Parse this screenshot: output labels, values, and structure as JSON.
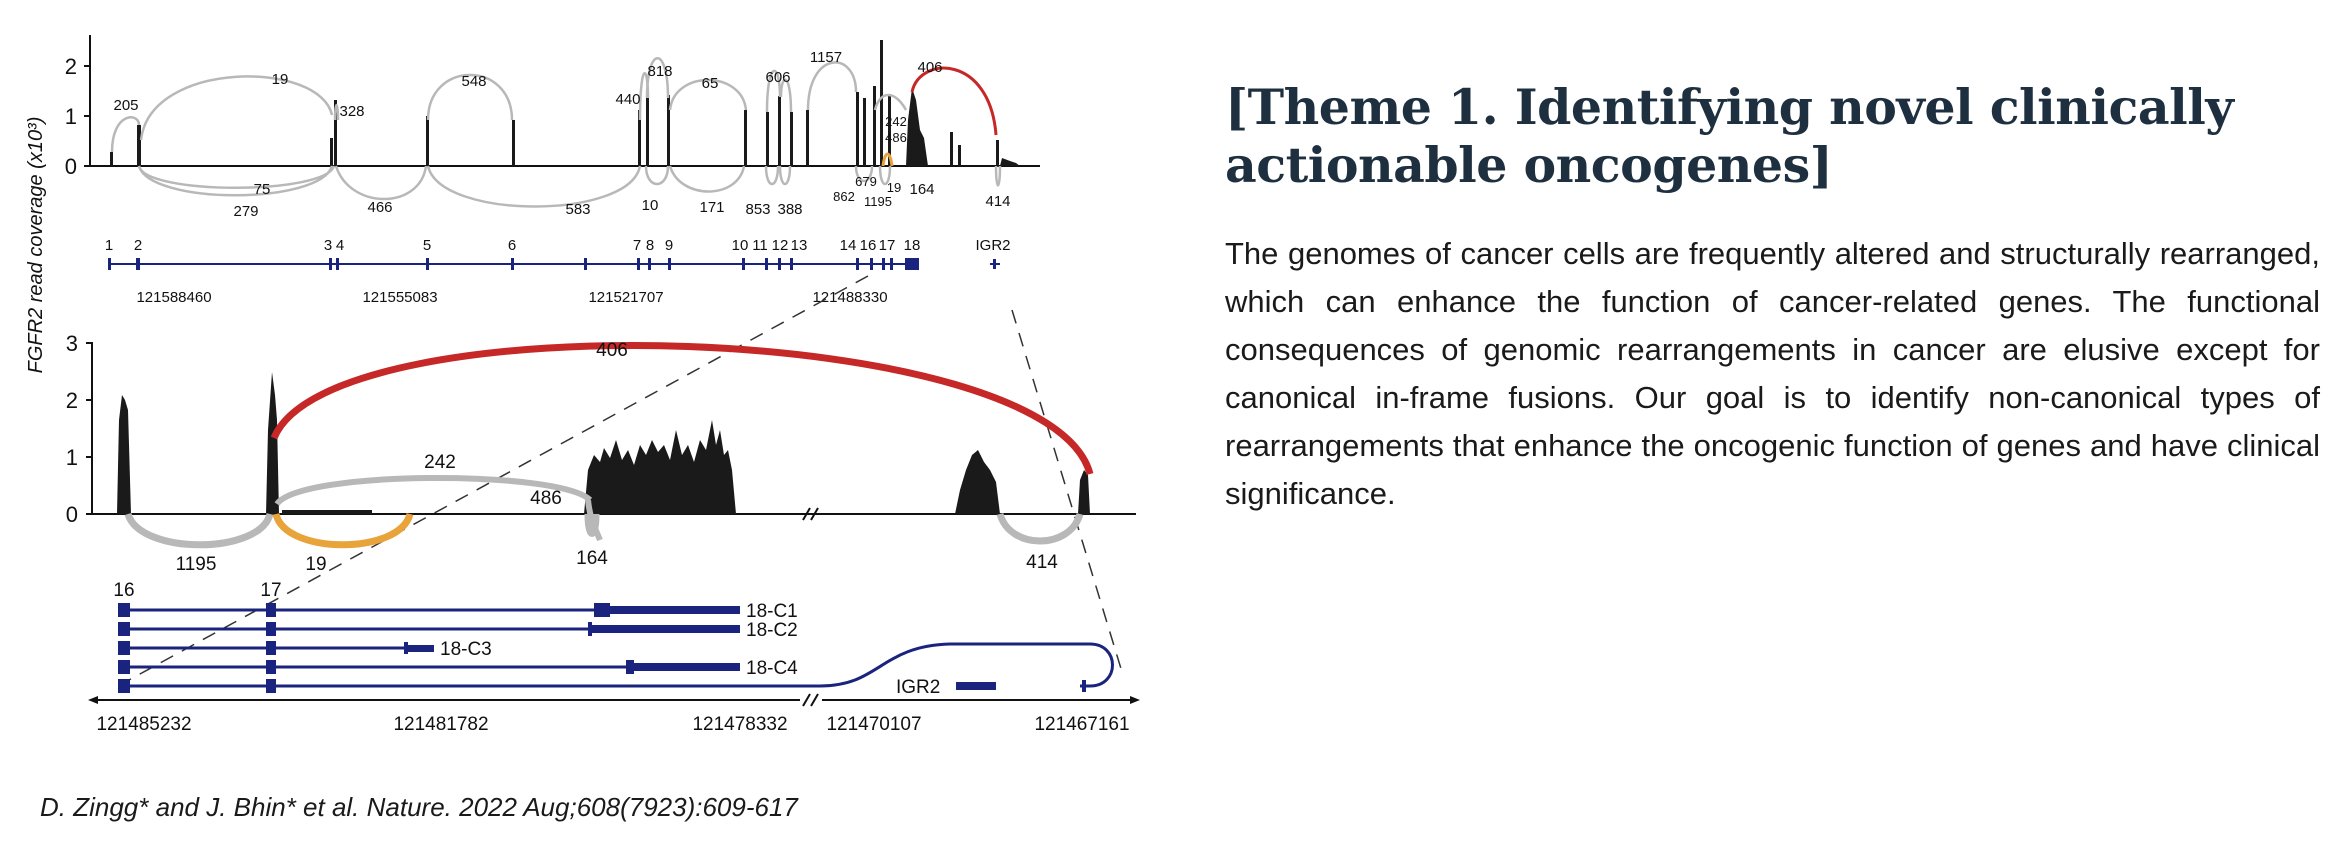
{
  "title": "[Theme 1. Identifying novel clinically actionable oncogenes]",
  "paragraph": "The genomes of cancer cells are frequently altered and structurally rearranged, which can enhance the function of cancer-related genes. The functional consequences of genomic rearrangements in cancer are elusive except for canonical in-frame fusions. Our goal is to identify non-canonical types of rearrangements that enhance the oncogenic function of genes and have clinical significance.",
  "citation": "D. Zingg* and J. Bhin* et al. Nature. 2022 Aug;608(7923):609-617",
  "figure": {
    "y_axis_label": "FGFR2 read coverage (x10³)",
    "top": {
      "ticks": [
        "0",
        "1",
        "2"
      ],
      "arc_labels": [
        "205",
        "19",
        "328",
        "548",
        "440",
        "818",
        "65",
        "606",
        "1157",
        "406",
        "242",
        "486",
        "679",
        "19",
        "1195",
        "862",
        "164",
        "75",
        "279",
        "466",
        "583",
        "10",
        "171",
        "853",
        "388",
        "414"
      ],
      "exon_numbers": [
        "1",
        "2",
        "3",
        "4",
        "5",
        "6",
        "7",
        "8",
        "9",
        "10",
        "11",
        "12",
        "13",
        "14",
        "16",
        "17",
        "18",
        "IGR2"
      ],
      "coordinates": [
        "121588460",
        "121555083",
        "121521707",
        "121488330"
      ]
    },
    "bottom": {
      "ticks": [
        "0",
        "1",
        "2",
        "3"
      ],
      "arc_labels": [
        "406",
        "242",
        "486",
        "1195",
        "19",
        "164",
        "414"
      ],
      "exon_numbers": [
        "16",
        "17"
      ],
      "isoforms": [
        "18-C1",
        "18-C2",
        "18-C3",
        "18-C4",
        "IGR2"
      ],
      "coordinates": [
        "121485232",
        "121481782",
        "121478332",
        "121470107",
        "121467161"
      ]
    },
    "colors": {
      "track": "#1a237e",
      "red_arc": "#c62828",
      "orange_arc": "#e8a33a",
      "grey_arc": "#b0b0b0",
      "coverage": "#1a1a1a"
    }
  }
}
